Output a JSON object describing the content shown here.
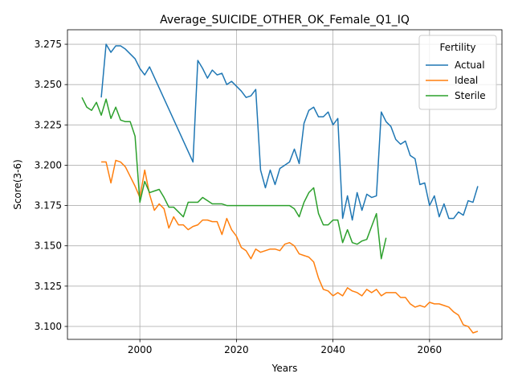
{
  "chart_data": {
    "type": "line",
    "title": "Average_SUICIDE_OTHER_OK_Female_Q1_IQ",
    "xlabel": "Years",
    "ylabel": "Score(3-6)",
    "xlim": [
      1985,
      2075
    ],
    "ylim": [
      3.092,
      3.284
    ],
    "xticks": [
      2000,
      2020,
      2040,
      2060
    ],
    "xtick_labels": [
      "2000",
      "2020",
      "2040",
      "2060"
    ],
    "yticks": [
      3.1,
      3.125,
      3.15,
      3.175,
      3.2,
      3.225,
      3.25,
      3.275
    ],
    "ytick_labels": [
      "3.100",
      "3.125",
      "3.150",
      "3.175",
      "3.200",
      "3.225",
      "3.250",
      "3.275"
    ],
    "grid": true,
    "legend": {
      "title": "Fertility",
      "placement": "top-right"
    },
    "series": [
      {
        "name": "Actual",
        "color": "#1f77b4",
        "points": [
          [
            1992,
            3.242
          ],
          [
            1993,
            3.275
          ],
          [
            1994,
            3.27
          ],
          [
            1995,
            3.274
          ],
          [
            1996,
            3.274
          ],
          [
            1997,
            3.272
          ],
          [
            1998,
            3.269
          ],
          [
            1999,
            3.266
          ],
          [
            2000,
            3.26
          ],
          [
            2001,
            3.256
          ],
          [
            2002,
            3.261
          ],
          [
            2011,
            3.202
          ],
          [
            2012,
            3.265
          ],
          [
            2013,
            3.26
          ],
          [
            2014,
            3.254
          ],
          [
            2015,
            3.259
          ],
          [
            2016,
            3.256
          ],
          [
            2017,
            3.257
          ],
          [
            2018,
            3.25
          ],
          [
            2019,
            3.252
          ],
          [
            2020,
            3.249
          ],
          [
            2021,
            3.246
          ],
          [
            2022,
            3.242
          ],
          [
            2023,
            3.243
          ],
          [
            2024,
            3.247
          ],
          [
            2025,
            3.197
          ],
          [
            2026,
            3.186
          ],
          [
            2027,
            3.197
          ],
          [
            2028,
            3.188
          ],
          [
            2029,
            3.198
          ],
          [
            2030,
            3.2
          ],
          [
            2031,
            3.202
          ],
          [
            2032,
            3.21
          ],
          [
            2033,
            3.201
          ],
          [
            2034,
            3.226
          ],
          [
            2035,
            3.234
          ],
          [
            2036,
            3.236
          ],
          [
            2037,
            3.23
          ],
          [
            2038,
            3.23
          ],
          [
            2039,
            3.233
          ],
          [
            2040,
            3.225
          ],
          [
            2041,
            3.229
          ],
          [
            2042,
            3.167
          ],
          [
            2043,
            3.181
          ],
          [
            2044,
            3.166
          ],
          [
            2045,
            3.183
          ],
          [
            2046,
            3.172
          ],
          [
            2047,
            3.182
          ],
          [
            2048,
            3.18
          ],
          [
            2049,
            3.181
          ],
          [
            2050,
            3.233
          ],
          [
            2051,
            3.227
          ],
          [
            2052,
            3.224
          ],
          [
            2053,
            3.216
          ],
          [
            2054,
            3.213
          ],
          [
            2055,
            3.215
          ],
          [
            2056,
            3.206
          ],
          [
            2057,
            3.204
          ],
          [
            2058,
            3.188
          ],
          [
            2059,
            3.189
          ],
          [
            2060,
            3.175
          ],
          [
            2061,
            3.181
          ],
          [
            2062,
            3.168
          ],
          [
            2063,
            3.176
          ],
          [
            2064,
            3.167
          ],
          [
            2065,
            3.167
          ],
          [
            2066,
            3.171
          ],
          [
            2067,
            3.169
          ],
          [
            2068,
            3.178
          ],
          [
            2069,
            3.177
          ],
          [
            2070,
            3.187
          ]
        ]
      },
      {
        "name": "Ideal",
        "color": "#ff7f0e",
        "points": [
          [
            1992,
            3.202
          ],
          [
            1993,
            3.202
          ],
          [
            1994,
            3.189
          ],
          [
            1995,
            3.203
          ],
          [
            1996,
            3.202
          ],
          [
            1997,
            3.199
          ],
          [
            1998,
            3.193
          ],
          [
            1999,
            3.187
          ],
          [
            2000,
            3.18
          ],
          [
            2001,
            3.197
          ],
          [
            2002,
            3.182
          ],
          [
            2003,
            3.172
          ],
          [
            2004,
            3.176
          ],
          [
            2005,
            3.173
          ],
          [
            2006,
            3.161
          ],
          [
            2007,
            3.168
          ],
          [
            2008,
            3.163
          ],
          [
            2009,
            3.163
          ],
          [
            2010,
            3.16
          ],
          [
            2011,
            3.162
          ],
          [
            2012,
            3.163
          ],
          [
            2013,
            3.166
          ],
          [
            2014,
            3.166
          ],
          [
            2015,
            3.165
          ],
          [
            2016,
            3.165
          ],
          [
            2017,
            3.157
          ],
          [
            2018,
            3.167
          ],
          [
            2019,
            3.16
          ],
          [
            2020,
            3.156
          ],
          [
            2021,
            3.149
          ],
          [
            2022,
            3.147
          ],
          [
            2023,
            3.142
          ],
          [
            2024,
            3.148
          ],
          [
            2025,
            3.146
          ],
          [
            2026,
            3.147
          ],
          [
            2027,
            3.148
          ],
          [
            2028,
            3.148
          ],
          [
            2029,
            3.147
          ],
          [
            2030,
            3.151
          ],
          [
            2031,
            3.152
          ],
          [
            2032,
            3.15
          ],
          [
            2033,
            3.145
          ],
          [
            2034,
            3.144
          ],
          [
            2035,
            3.143
          ],
          [
            2036,
            3.14
          ],
          [
            2037,
            3.13
          ],
          [
            2038,
            3.123
          ],
          [
            2039,
            3.122
          ],
          [
            2040,
            3.119
          ],
          [
            2041,
            3.121
          ],
          [
            2042,
            3.119
          ],
          [
            2043,
            3.124
          ],
          [
            2044,
            3.122
          ],
          [
            2045,
            3.121
          ],
          [
            2046,
            3.119
          ],
          [
            2047,
            3.123
          ],
          [
            2048,
            3.121
          ],
          [
            2049,
            3.123
          ],
          [
            2050,
            3.119
          ],
          [
            2051,
            3.121
          ],
          [
            2052,
            3.121
          ],
          [
            2053,
            3.121
          ],
          [
            2054,
            3.118
          ],
          [
            2055,
            3.118
          ],
          [
            2056,
            3.114
          ],
          [
            2057,
            3.112
          ],
          [
            2058,
            3.113
          ],
          [
            2059,
            3.112
          ],
          [
            2060,
            3.115
          ],
          [
            2061,
            3.114
          ],
          [
            2062,
            3.114
          ],
          [
            2063,
            3.113
          ],
          [
            2064,
            3.112
          ],
          [
            2065,
            3.109
          ],
          [
            2066,
            3.107
          ],
          [
            2067,
            3.101
          ],
          [
            2068,
            3.1
          ],
          [
            2069,
            3.096
          ],
          [
            2070,
            3.097
          ]
        ]
      },
      {
        "name": "Sterile",
        "color": "#2ca02c",
        "points": [
          [
            1988,
            3.242
          ],
          [
            1989,
            3.236
          ],
          [
            1990,
            3.234
          ],
          [
            1991,
            3.239
          ],
          [
            1992,
            3.231
          ],
          [
            1993,
            3.241
          ],
          [
            1994,
            3.229
          ],
          [
            1995,
            3.236
          ],
          [
            1996,
            3.228
          ],
          [
            1997,
            3.227
          ],
          [
            1998,
            3.227
          ],
          [
            1999,
            3.218
          ],
          [
            2000,
            3.177
          ],
          [
            2001,
            3.19
          ],
          [
            2002,
            3.183
          ],
          [
            2003,
            3.184
          ],
          [
            2004,
            3.185
          ],
          [
            2005,
            3.18
          ],
          [
            2006,
            3.174
          ],
          [
            2007,
            3.174
          ],
          [
            2008,
            3.171
          ],
          [
            2009,
            3.168
          ],
          [
            2010,
            3.177
          ],
          [
            2011,
            3.177
          ],
          [
            2012,
            3.177
          ],
          [
            2013,
            3.18
          ],
          [
            2014,
            3.178
          ],
          [
            2015,
            3.176
          ],
          [
            2016,
            3.176
          ],
          [
            2017,
            3.176
          ],
          [
            2018,
            3.175
          ],
          [
            2019,
            3.175
          ],
          [
            2020,
            3.175
          ],
          [
            2021,
            3.175
          ],
          [
            2022,
            3.175
          ],
          [
            2023,
            3.175
          ],
          [
            2024,
            3.175
          ],
          [
            2025,
            3.175
          ],
          [
            2026,
            3.175
          ],
          [
            2027,
            3.175
          ],
          [
            2028,
            3.175
          ],
          [
            2029,
            3.175
          ],
          [
            2030,
            3.175
          ],
          [
            2031,
            3.175
          ],
          [
            2032,
            3.173
          ],
          [
            2033,
            3.168
          ],
          [
            2034,
            3.177
          ],
          [
            2035,
            3.183
          ],
          [
            2036,
            3.186
          ],
          [
            2037,
            3.17
          ],
          [
            2038,
            3.163
          ],
          [
            2039,
            3.163
          ],
          [
            2040,
            3.166
          ],
          [
            2041,
            3.166
          ],
          [
            2042,
            3.152
          ],
          [
            2043,
            3.16
          ],
          [
            2044,
            3.152
          ],
          [
            2045,
            3.151
          ],
          [
            2046,
            3.153
          ],
          [
            2047,
            3.154
          ],
          [
            2048,
            3.162
          ],
          [
            2049,
            3.17
          ],
          [
            2050,
            3.142
          ],
          [
            2051,
            3.155
          ]
        ]
      }
    ]
  }
}
